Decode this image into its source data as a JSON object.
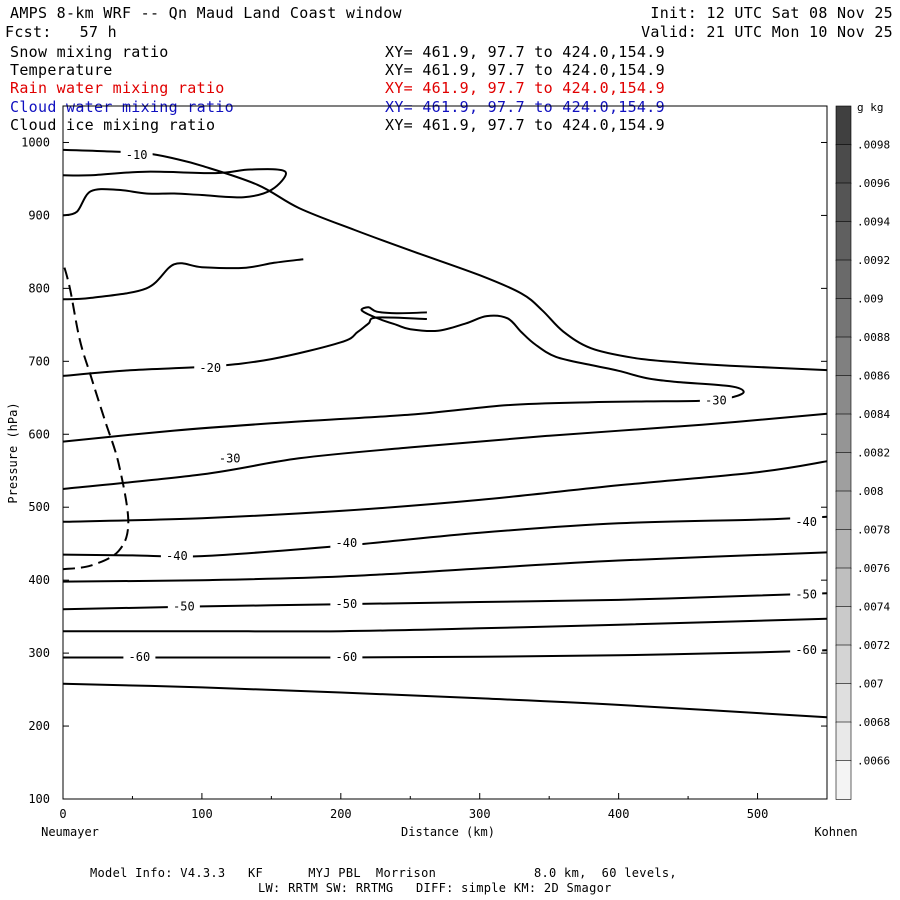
{
  "header": {
    "title": "AMPS 8-km WRF -- Qn Maud Land Coast window",
    "forecast": "Fcst:   57 h",
    "init": "Init: 12 UTC Sat 08 Nov 25",
    "valid": "Valid: 21 UTC Mon 10 Nov 25"
  },
  "fields": [
    {
      "name": "Snow mixing ratio",
      "xy": "XY= 461.9, 97.7 to 424.0,154.9",
      "color": "#000000"
    },
    {
      "name": "Temperature",
      "xy": "XY= 461.9, 97.7 to 424.0,154.9",
      "color": "#000000"
    },
    {
      "name": "Rain water mixing ratio",
      "xy": "XY= 461.9, 97.7 to 424.0,154.9",
      "color": "#e00000"
    },
    {
      "name": "Cloud water mixing ratio",
      "xy": "XY= 461.9, 97.7 to 424.0,154.9",
      "color": "#1010c0"
    },
    {
      "name": "Cloud ice mixing ratio",
      "xy": "XY= 461.9, 97.7 to 424.0,154.9",
      "color": "#000000"
    }
  ],
  "footer": {
    "line1": "Model Info: V4.3.3   KF      MYJ PBL  Morrison             8.0 km,  60 levels,",
    "line2": "LW: RRTM SW: RRTMG   DIFF: simple KM: 2D Smagor"
  },
  "chart_data": {
    "type": "contour",
    "xlabel": "Distance (km)",
    "ylabel": "Pressure (hPa)",
    "xlim": [
      0,
      550
    ],
    "ylim": [
      1050,
      100
    ],
    "x_ticks": [
      0,
      100,
      200,
      300,
      400,
      500
    ],
    "y_ticks": [
      100,
      200,
      300,
      400,
      500,
      600,
      700,
      800,
      900,
      1000
    ],
    "x_left_label": "Neumayer",
    "x_right_label": "Kohnen",
    "colorbar": {
      "unit": "g kg",
      "unit_exp": "-1",
      "labels": [
        ".0098",
        ".0096",
        ".0094",
        ".0092",
        ".009",
        ".0088",
        ".0086",
        ".0084",
        ".0082",
        ".008",
        ".0078",
        ".0076",
        ".0074",
        ".0072",
        ".007",
        ".0068",
        ".0066"
      ]
    },
    "contour_labels": [
      {
        "text": "-60",
        "x": 55,
        "p": 295
      },
      {
        "text": "-60",
        "x": 204,
        "p": 295
      },
      {
        "text": "-60",
        "x": 535,
        "p": 304
      },
      {
        "text": "-50",
        "x": 87,
        "p": 364
      },
      {
        "text": "-50",
        "x": 204,
        "p": 367
      },
      {
        "text": "-50",
        "x": 535,
        "p": 380
      },
      {
        "text": "-40",
        "x": 82,
        "p": 433
      },
      {
        "text": "-40",
        "x": 204,
        "p": 451
      },
      {
        "text": "-40",
        "x": 535,
        "p": 480
      },
      {
        "text": "-30",
        "x": 120,
        "p": 567
      },
      {
        "text": "-30",
        "x": 470,
        "p": 646
      },
      {
        "text": "-20",
        "x": 106,
        "p": 691
      },
      {
        "text": "-10",
        "x": 53,
        "p": 983
      }
    ],
    "isotherms": [
      {
        "name": "upper",
        "points": [
          [
            0,
            258
          ],
          [
            100,
            253
          ],
          [
            200,
            246
          ],
          [
            300,
            238
          ],
          [
            400,
            229
          ],
          [
            550,
            212
          ]
        ]
      },
      {
        "name": "-60",
        "points": [
          [
            0,
            294
          ],
          [
            100,
            294
          ],
          [
            200,
            294
          ],
          [
            300,
            295
          ],
          [
            400,
            297
          ],
          [
            500,
            301
          ],
          [
            550,
            304
          ]
        ]
      },
      {
        "name": "-60b",
        "points": [
          [
            0,
            330
          ],
          [
            100,
            330
          ],
          [
            200,
            330
          ],
          [
            300,
            334
          ],
          [
            400,
            339
          ],
          [
            550,
            347
          ]
        ]
      },
      {
        "name": "-50",
        "points": [
          [
            0,
            360
          ],
          [
            100,
            364
          ],
          [
            200,
            367
          ],
          [
            300,
            370
          ],
          [
            400,
            373
          ],
          [
            500,
            379
          ],
          [
            550,
            382
          ]
        ]
      },
      {
        "name": "-50b",
        "points": [
          [
            0,
            398
          ],
          [
            100,
            400
          ],
          [
            200,
            405
          ],
          [
            300,
            416
          ],
          [
            400,
            427
          ],
          [
            550,
            438
          ]
        ]
      },
      {
        "name": "-40",
        "points": [
          [
            0,
            435
          ],
          [
            50,
            434
          ],
          [
            100,
            433
          ],
          [
            200,
            447
          ],
          [
            300,
            465
          ],
          [
            400,
            478
          ],
          [
            500,
            483
          ],
          [
            550,
            487
          ]
        ]
      },
      {
        "name": "-40b",
        "points": [
          [
            0,
            480
          ],
          [
            100,
            485
          ],
          [
            200,
            495
          ],
          [
            300,
            510
          ],
          [
            400,
            530
          ],
          [
            500,
            548
          ],
          [
            550,
            563
          ]
        ]
      },
      {
        "name": "-30",
        "points": [
          [
            0,
            525
          ],
          [
            100,
            545
          ],
          [
            170,
            567
          ],
          [
            250,
            582
          ],
          [
            350,
            598
          ],
          [
            460,
            613
          ],
          [
            550,
            628
          ]
        ]
      },
      {
        "name": "cold-region",
        "points": [
          [
            0,
            590
          ],
          [
            80,
            605
          ],
          [
            150,
            615
          ],
          [
            250,
            627
          ],
          [
            320,
            640
          ],
          [
            380,
            644
          ],
          [
            420,
            645
          ],
          [
            460,
            646
          ],
          [
            480,
            650
          ],
          [
            490,
            658
          ],
          [
            480,
            666
          ],
          [
            440,
            672
          ],
          [
            420,
            677
          ],
          [
            400,
            687
          ],
          [
            380,
            695
          ],
          [
            355,
            706
          ],
          [
            340,
            723
          ],
          [
            330,
            740
          ],
          [
            320,
            759
          ],
          [
            305,
            762
          ],
          [
            290,
            752
          ],
          [
            270,
            742
          ],
          [
            250,
            744
          ],
          [
            240,
            750
          ],
          [
            225,
            760
          ],
          [
            215,
            770
          ],
          [
            220,
            774
          ],
          [
            226,
            768
          ],
          [
            240,
            766
          ],
          [
            262,
            767
          ]
        ]
      },
      {
        "name": "-20",
        "points": [
          [
            0,
            680
          ],
          [
            50,
            688
          ],
          [
            106,
            693
          ],
          [
            150,
            703
          ],
          [
            200,
            726
          ],
          [
            212,
            740
          ],
          [
            220,
            752
          ],
          [
            226,
            760
          ],
          [
            262,
            758
          ]
        ]
      },
      {
        "name": "-10",
        "points": [
          [
            0,
            785
          ],
          [
            20,
            787
          ],
          [
            60,
            800
          ],
          [
            80,
            833
          ],
          [
            100,
            829
          ],
          [
            130,
            828
          ],
          [
            152,
            835
          ],
          [
            173,
            840
          ]
        ]
      },
      {
        "name": "surface",
        "points": [
          [
            0,
            990
          ],
          [
            30,
            988
          ],
          [
            60,
            985
          ],
          [
            80,
            978
          ],
          [
            100,
            968
          ],
          [
            140,
            942
          ],
          [
            170,
            910
          ],
          [
            210,
            880
          ],
          [
            250,
            852
          ],
          [
            300,
            818
          ],
          [
            330,
            793
          ],
          [
            345,
            770
          ],
          [
            360,
            741
          ],
          [
            380,
            718
          ],
          [
            410,
            705
          ],
          [
            440,
            699
          ],
          [
            480,
            694
          ],
          [
            550,
            688
          ]
        ]
      },
      {
        "name": "inner-low",
        "points": [
          [
            0,
            900
          ],
          [
            10,
            905
          ],
          [
            20,
            933
          ],
          [
            40,
            935
          ],
          [
            60,
            930
          ],
          [
            80,
            930
          ],
          [
            100,
            928
          ],
          [
            130,
            925
          ],
          [
            150,
            935
          ],
          [
            160,
            960
          ],
          [
            135,
            963
          ],
          [
            110,
            958
          ],
          [
            60,
            960
          ],
          [
            20,
            955
          ],
          [
            0,
            955
          ]
        ]
      }
    ],
    "dashed_line": {
      "points": [
        [
          0,
          415
        ],
        [
          20,
          420
        ],
        [
          40,
          440
        ],
        [
          47,
          480
        ],
        [
          40,
          560
        ],
        [
          30,
          620
        ],
        [
          20,
          680
        ],
        [
          12,
          730
        ],
        [
          5,
          800
        ],
        [
          0,
          835
        ]
      ]
    }
  }
}
